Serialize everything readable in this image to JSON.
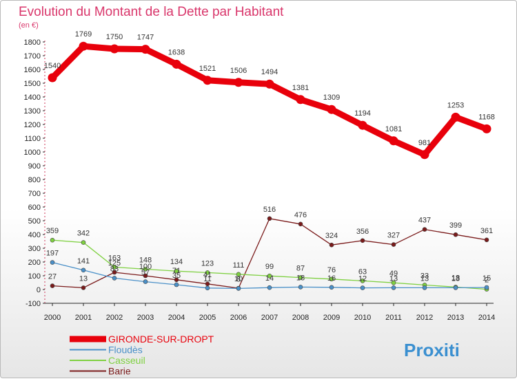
{
  "chart_data": {
    "type": "line",
    "title": "Evolution du Montant de la Dette par Habitant",
    "subtitle": "(en €)",
    "x": [
      "2000",
      "2001",
      "2002",
      "2003",
      "2004",
      "2005",
      "2006",
      "2007",
      "2008",
      "2009",
      "2010",
      "2011",
      "2012",
      "2013",
      "2014"
    ],
    "ylim": [
      -100,
      1800
    ],
    "yticks": [
      -100,
      0,
      100,
      200,
      300,
      400,
      500,
      600,
      700,
      800,
      900,
      1000,
      1100,
      1200,
      1300,
      1400,
      1500,
      1600,
      1700,
      1800
    ],
    "grid": false,
    "legend_position": "bottom-left",
    "series": [
      {
        "name": "GIRONDE-SUR-DROPT",
        "color": "#e8000b",
        "values": [
          1540,
          1769,
          1750,
          1747,
          1638,
          1521,
          1506,
          1494,
          1381,
          1309,
          1194,
          1081,
          981,
          1253,
          1168
        ],
        "labels": [
          "1540",
          "1769",
          "1750",
          "1747",
          "1638",
          "1521",
          "1506",
          "1494",
          "1381",
          "1309",
          "1194",
          "1081",
          "981",
          "1253",
          "1168"
        ]
      },
      {
        "name": "Floudès",
        "color": "#4a90c8",
        "values": [
          197,
          141,
          83,
          57,
          35,
          11,
          8,
          14,
          18,
          16,
          12,
          13,
          13,
          13,
          15
        ],
        "labels": [
          "197",
          "141",
          "83",
          "57",
          "35",
          "11",
          "8",
          "14",
          "18",
          "16",
          "12",
          "13",
          "13",
          "13",
          "15"
        ]
      },
      {
        "name": "Casseuil",
        "color": "#7ed040",
        "values": [
          359,
          342,
          163,
          148,
          134,
          123,
          111,
          99,
          87,
          76,
          63,
          49,
          33,
          18,
          2
        ],
        "labels": [
          "359",
          "342",
          "163",
          "148",
          "134",
          "123",
          "111",
          "99",
          "87",
          "76",
          "63",
          "49",
          "33",
          "18",
          "2"
        ]
      },
      {
        "name": "Barie",
        "color": "#7a1a1a",
        "values": [
          27,
          13,
          125,
          100,
          71,
          41,
          10,
          516,
          476,
          324,
          356,
          327,
          437,
          399,
          361
        ],
        "labels": [
          "27",
          "13",
          "125",
          "100",
          "71",
          "41",
          "10",
          "516",
          "476",
          "324",
          "356",
          "327",
          "437",
          "399",
          "361"
        ]
      }
    ]
  },
  "logo": {
    "text": "Proxiti"
  }
}
